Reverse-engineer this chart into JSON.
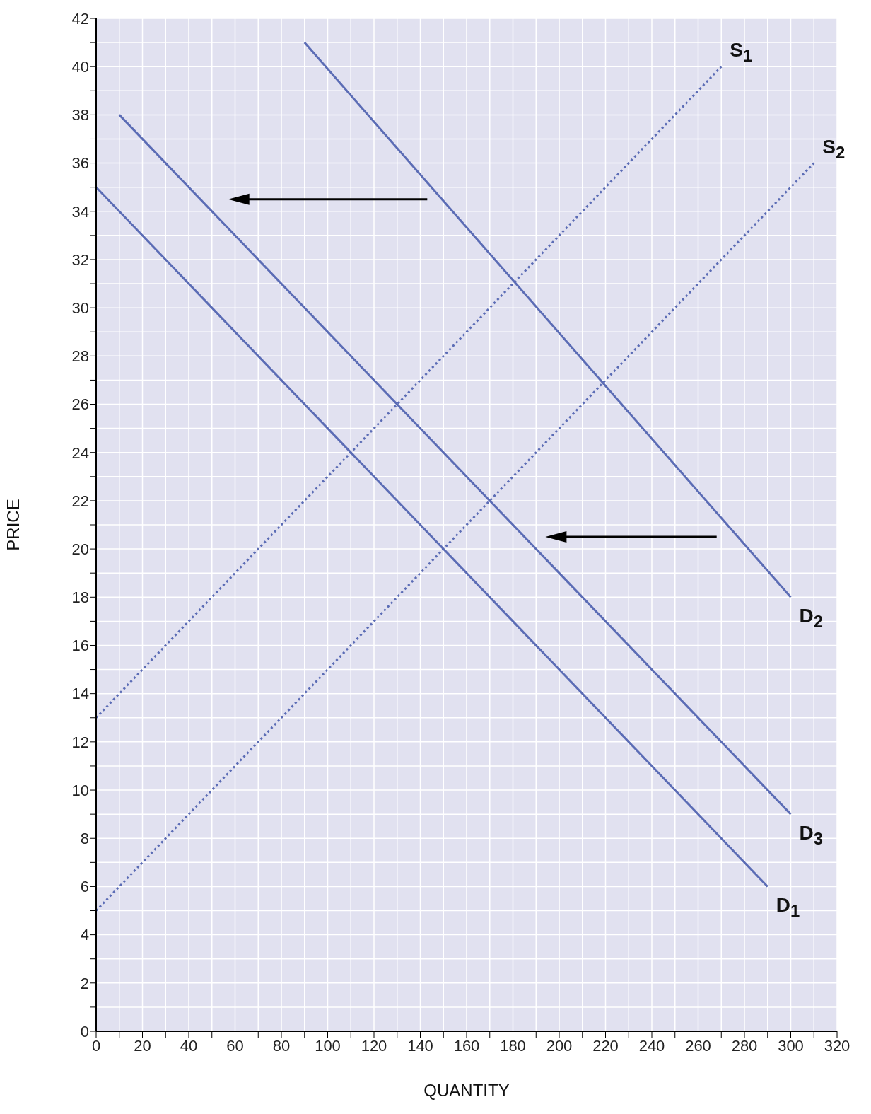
{
  "chart_data": {
    "type": "line",
    "xlabel": "QUANTITY",
    "ylabel": "PRICE",
    "xlim": [
      0,
      320
    ],
    "ylim": [
      0,
      42
    ],
    "xticks": [
      0,
      {
        "value": 10,
        "label": null
      },
      20,
      {
        "value": 30,
        "label": null
      },
      40,
      {
        "value": 50,
        "label": null
      },
      60,
      {
        "value": 70,
        "label": null
      },
      80,
      {
        "value": 90,
        "label": null
      },
      100,
      {
        "value": 110,
        "label": null
      },
      120,
      {
        "value": 130,
        "label": null
      },
      140,
      {
        "value": 150,
        "label": null
      },
      160,
      {
        "value": 170,
        "label": null
      },
      180,
      {
        "value": 190,
        "label": null
      },
      200,
      {
        "value": 210,
        "label": null
      },
      220,
      {
        "value": 230,
        "label": null
      },
      240,
      {
        "value": 250,
        "label": null
      },
      260,
      {
        "value": 270,
        "label": null
      },
      280,
      {
        "value": 290,
        "label": null
      },
      300,
      {
        "value": 310,
        "label": null
      },
      320
    ],
    "yticks": [
      0,
      {
        "value": 1,
        "label": null
      },
      2,
      {
        "value": 3,
        "label": null
      },
      4,
      {
        "value": 5,
        "label": null
      },
      6,
      {
        "value": 7,
        "label": null
      },
      8,
      {
        "value": 9,
        "label": null
      },
      10,
      {
        "value": 11,
        "label": null
      },
      12,
      {
        "value": 13,
        "label": null
      },
      14,
      {
        "value": 15,
        "label": null
      },
      16,
      {
        "value": 17,
        "label": null
      },
      18,
      {
        "value": 19,
        "label": null
      },
      20,
      {
        "value": 21,
        "label": null
      },
      22,
      {
        "value": 23,
        "label": null
      },
      24,
      {
        "value": 25,
        "label": null
      },
      26,
      {
        "value": 27,
        "label": null
      },
      28,
      {
        "value": 29,
        "label": null
      },
      30,
      {
        "value": 31,
        "label": null
      },
      32,
      {
        "value": 33,
        "label": null
      },
      34,
      {
        "value": 35,
        "label": null
      },
      36,
      {
        "value": 37,
        "label": null
      },
      38,
      {
        "value": 39,
        "label": null
      },
      40,
      {
        "value": 41,
        "label": null
      },
      42
    ],
    "grid": true,
    "series": [
      {
        "name": "S$_{1}$",
        "color": "#5b6cb5",
        "line_style": "dotted",
        "x": [
          0,
          270
        ],
        "values": [
          13,
          40
        ]
      },
      {
        "name": "S$_{2}$",
        "color": "#5b6cb5",
        "line_style": "dotted",
        "x": [
          0,
          310
        ],
        "values": [
          5,
          36
        ]
      },
      {
        "name": "D$_{2}$",
        "color": "#5b6cb5",
        "line_style": "solid",
        "x": [
          90,
          300
        ],
        "values": [
          41,
          18
        ]
      },
      {
        "name": "D$_{3}$",
        "color": "#5b6cb5",
        "line_style": "solid",
        "x": [
          10,
          300
        ],
        "values": [
          38,
          9
        ]
      },
      {
        "name": "D$_{1}$",
        "color": "#5b6cb5",
        "line_style": "solid",
        "x": [
          0,
          290
        ],
        "values": [
          35,
          6
        ]
      }
    ]
  }
}
